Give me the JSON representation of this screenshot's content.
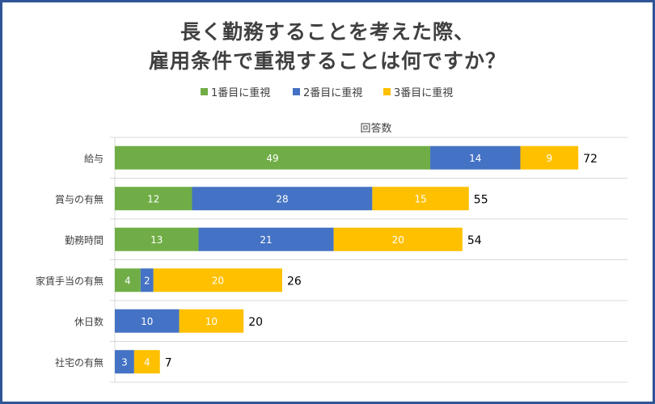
{
  "title_line1": "長く勤務することを考えた際、",
  "title_line2": "雇用条件で重視することは何ですか？",
  "subtitle": "回答数",
  "chart_data": {
    "type": "bar",
    "orientation": "horizontal",
    "stacked": true,
    "title": "長く勤務することを考えた際、雇用条件で重視することは何ですか？",
    "subtitle": "回答数",
    "categories": [
      "給与",
      "賞与の有無",
      "勤務時間",
      "家賃手当の有無",
      "休日数",
      "社宅の有無"
    ],
    "series": [
      {
        "name": "1番目に重視",
        "color": "#70ad47",
        "values": [
          49,
          12,
          13,
          4,
          0,
          0
        ]
      },
      {
        "name": "2番目に重視",
        "color": "#4472c4",
        "values": [
          14,
          28,
          21,
          2,
          10,
          3
        ]
      },
      {
        "name": "3番目に重視",
        "color": "#ffc000",
        "values": [
          9,
          15,
          20,
          20,
          10,
          4
        ]
      }
    ],
    "totals": [
      72,
      55,
      54,
      26,
      20,
      7
    ],
    "legend_position": "top",
    "grid": "horizontal separators"
  }
}
